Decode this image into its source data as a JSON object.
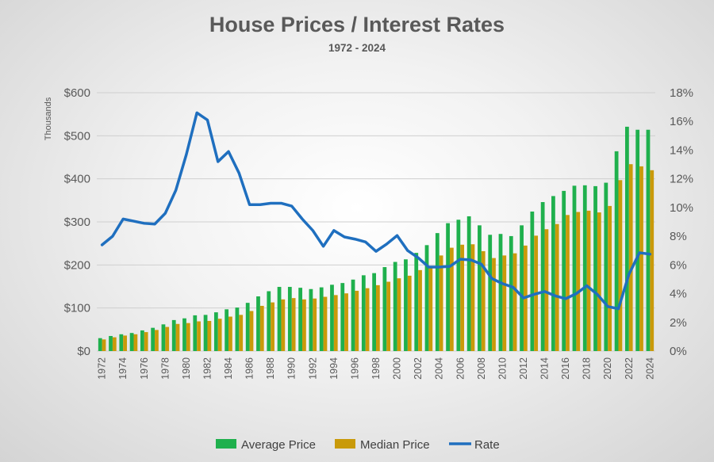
{
  "chart_data": {
    "type": "bar",
    "title": "House Prices / Interest Rates",
    "subtitle": "1972 - 2024",
    "ylabel": "Thousands",
    "ylim": [
      0,
      600
    ],
    "y2lim": [
      0,
      18
    ],
    "y_ticks": [
      "$0",
      "$100",
      "$200",
      "$300",
      "$400",
      "$500",
      "$600"
    ],
    "y2_ticks": [
      "0%",
      "2%",
      "4%",
      "6%",
      "8%",
      "10%",
      "12%",
      "14%",
      "16%",
      "18%"
    ],
    "grid": true,
    "legend_position": "bottom",
    "categories": [
      "1972",
      "1973",
      "1974",
      "1975",
      "1976",
      "1977",
      "1978",
      "1979",
      "1980",
      "1981",
      "1982",
      "1983",
      "1984",
      "1985",
      "1986",
      "1987",
      "1988",
      "1989",
      "1990",
      "1991",
      "1992",
      "1993",
      "1994",
      "1995",
      "1996",
      "1997",
      "1998",
      "1999",
      "2000",
      "2001",
      "2002",
      "2003",
      "2004",
      "2005",
      "2006",
      "2007",
      "2008",
      "2009",
      "2010",
      "2011",
      "2012",
      "2013",
      "2014",
      "2015",
      "2016",
      "2017",
      "2018",
      "2019",
      "2020",
      "2021",
      "2022",
      "2023",
      "2024"
    ],
    "x_tick_labels": [
      "1972",
      "1974",
      "1976",
      "1978",
      "1980",
      "1982",
      "1984",
      "1986",
      "1988",
      "1990",
      "1992",
      "1994",
      "1996",
      "1998",
      "2000",
      "2002",
      "2004",
      "2006",
      "2008",
      "2010",
      "2012",
      "2014",
      "2016",
      "2018",
      "2020",
      "2022",
      "2024"
    ],
    "series": [
      {
        "name": "Average Price",
        "kind": "bar",
        "color": "#1fb04d",
        "values": [
          30,
          35,
          39,
          42,
          48,
          54,
          62,
          72,
          76,
          83,
          84,
          90,
          97,
          101,
          112,
          127,
          139,
          149,
          149,
          147,
          144,
          148,
          154,
          158,
          166,
          176,
          181,
          195,
          207,
          213,
          228,
          246,
          274,
          297,
          305,
          313,
          292,
          270,
          272,
          267,
          292,
          324,
          346,
          360,
          372,
          384,
          385,
          383,
          391,
          464,
          521,
          514,
          514
        ]
      },
      {
        "name": "Median Price",
        "kind": "bar",
        "color": "#c99a0a",
        "values": [
          27,
          32,
          36,
          39,
          44,
          49,
          56,
          63,
          65,
          69,
          70,
          75,
          80,
          84,
          93,
          105,
          113,
          120,
          123,
          120,
          122,
          126,
          130,
          134,
          140,
          146,
          153,
          161,
          169,
          175,
          188,
          195,
          222,
          240,
          247,
          248,
          232,
          216,
          222,
          227,
          245,
          268,
          283,
          295,
          316,
          323,
          326,
          322,
          337,
          397,
          434,
          429,
          420
        ]
      },
      {
        "name": "Rate",
        "kind": "line",
        "color": "#1f6fbf",
        "axis": "right",
        "values": [
          7.4,
          8.0,
          9.2,
          9.05,
          8.9,
          8.85,
          9.6,
          11.2,
          13.7,
          16.6,
          16.1,
          13.2,
          13.9,
          12.4,
          10.2,
          10.2,
          10.3,
          10.3,
          10.1,
          9.2,
          8.4,
          7.3,
          8.4,
          7.95,
          7.8,
          7.6,
          6.95,
          7.45,
          8.05,
          7.0,
          6.5,
          5.85,
          5.85,
          5.9,
          6.4,
          6.35,
          6.05,
          5.05,
          4.7,
          4.45,
          3.7,
          3.95,
          4.15,
          3.85,
          3.65,
          4.0,
          4.55,
          3.95,
          3.1,
          2.95,
          5.35,
          6.85,
          6.75
        ]
      }
    ]
  }
}
